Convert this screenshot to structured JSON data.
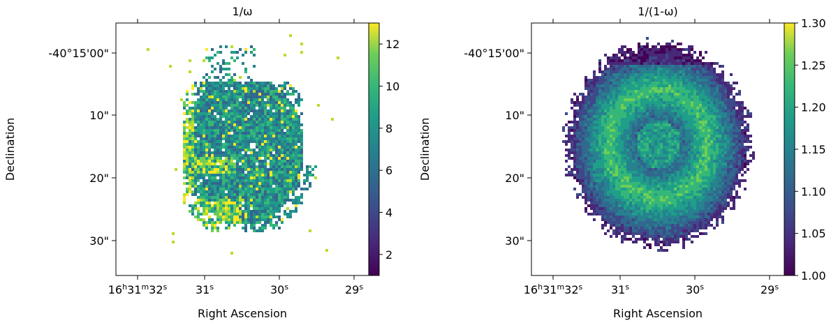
{
  "chart_data": [
    {
      "type": "heatmap",
      "title": "1/ω",
      "xlabel": "Right Ascension",
      "ylabel": "Declination",
      "x_ticks": [
        {
          "h": "16",
          "m": "31",
          "s": "32"
        },
        {
          "s": "31"
        },
        {
          "s": "30"
        },
        {
          "s": "29"
        }
      ],
      "y_ticks": [
        "-40°15'00\"",
        "10\"",
        "20\"",
        "30\""
      ],
      "colorbar": {
        "colormap": "viridis",
        "range": [
          1,
          13
        ],
        "ticks": [
          "2",
          "4",
          "6",
          "8",
          "10",
          "12"
        ],
        "tick_values": [
          2,
          4,
          6,
          8,
          10,
          12
        ]
      },
      "map_description": "Irregular patchy blob centered near 16h31m30.6s, -40°15'15\"; values mostly 6-10, bright yellow (10-12) speckles along lower-left and lower edge; sparse outlying pixels at top; small white holes near center."
    },
    {
      "type": "heatmap",
      "title": "1/(1-ω)",
      "xlabel": "Right Ascension",
      "ylabel": "Declination",
      "x_ticks": [
        {
          "h": "16",
          "m": "31",
          "s": "32"
        },
        {
          "s": "31"
        },
        {
          "s": "30"
        },
        {
          "s": "29"
        }
      ],
      "y_ticks": [
        "-40°15'00\"",
        "10\"",
        "20\"",
        "30\""
      ],
      "colorbar": {
        "colormap": "viridis",
        "range": [
          1.0,
          1.3
        ],
        "ticks": [
          "1.00",
          "1.05",
          "1.10",
          "1.15",
          "1.20",
          "1.25",
          "1.30"
        ],
        "tick_values": [
          1.0,
          1.05,
          1.1,
          1.15,
          1.2,
          1.25,
          1.3
        ]
      },
      "map_description": "Large oval nebula centered near 16h31m30.5s, -40°15'16\"; bright ring (~1.18-1.20) surrounding a slightly fainter core, dark purple (~1.00-1.05) at the outer edges and top."
    }
  ]
}
